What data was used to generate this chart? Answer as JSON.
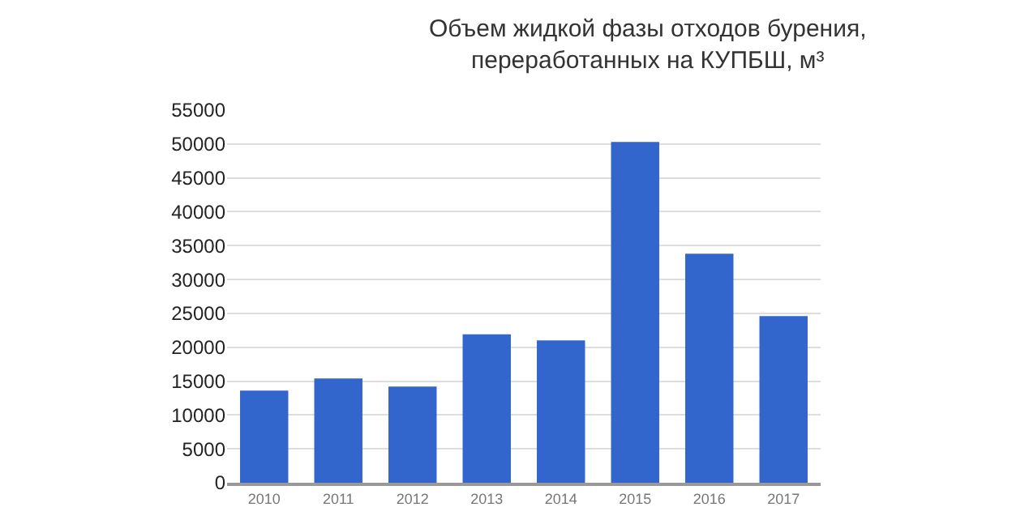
{
  "chart_data": {
    "type": "bar",
    "title": "Объем жидкой фазы отходов бурения,\nпереработанных на КУПБШ, м³",
    "categories": [
      "2010",
      "2011",
      "2012",
      "2013",
      "2014",
      "2015",
      "2016",
      "2017"
    ],
    "values": [
      13600,
      15400,
      14200,
      21900,
      21000,
      50300,
      33800,
      24600
    ],
    "color": "#3366cc",
    "ylim": [
      0,
      55000
    ],
    "yticks": [
      0,
      5000,
      10000,
      15000,
      20000,
      25000,
      30000,
      35000,
      40000,
      45000,
      50000,
      55000
    ],
    "grid": true
  }
}
